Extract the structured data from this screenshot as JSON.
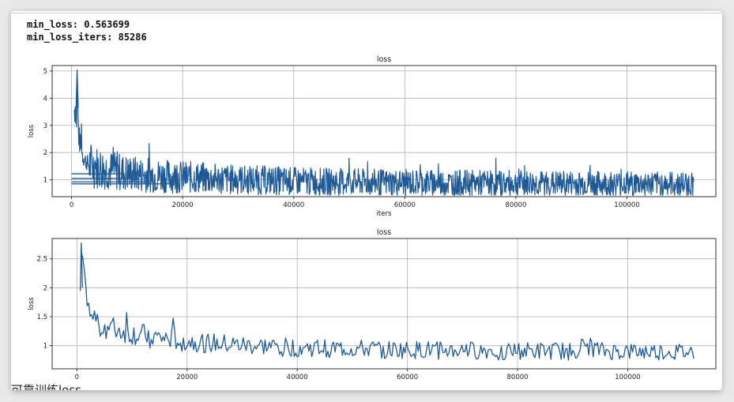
{
  "output": {
    "line1": "min_loss: 0.563699",
    "line2": "min_loss_iters: 85286"
  },
  "cutoff_text": "可靠训练loss",
  "colors": {
    "line": "#1f5a96",
    "grid": "#b0b0b0",
    "frame": "#333333"
  },
  "chart_data": [
    {
      "type": "line",
      "title": "loss",
      "xlabel": "iters",
      "ylabel": "loss",
      "xlim": [
        -3500,
        116000
      ],
      "ylim": [
        0.38,
        5.2
      ],
      "xticks": [
        0,
        20000,
        40000,
        60000,
        80000,
        100000
      ],
      "yticks": [
        1,
        2,
        3,
        4,
        5
      ],
      "grid": true,
      "series": [
        {
          "x": [
            500,
            700,
            900,
            1000,
            1100,
            1300,
            1600,
            2000,
            2500,
            3000,
            4000,
            5000,
            6000,
            7000,
            8000,
            9000,
            10000,
            12000,
            14000,
            16000,
            18000,
            20000,
            25000,
            30000,
            35000,
            40000,
            45000,
            50000,
            55000,
            60000,
            65000,
            70000,
            75000,
            80000,
            85286,
            90000,
            95000,
            100000,
            105000,
            110000,
            112000
          ],
          "y": [
            3.6,
            3.8,
            3.2,
            5.05,
            3.5,
            2.6,
            2.2,
            1.9,
            1.7,
            1.6,
            1.5,
            1.45,
            1.4,
            1.35,
            1.3,
            1.28,
            1.25,
            1.2,
            1.18,
            1.15,
            1.12,
            1.1,
            1.05,
            1.0,
            0.98,
            0.95,
            0.93,
            0.92,
            0.9,
            0.9,
            0.89,
            0.88,
            0.88,
            0.87,
            0.86,
            0.86,
            0.85,
            0.85,
            0.84,
            0.84,
            0.84
          ]
        }
      ]
    },
    {
      "type": "line",
      "title": "loss",
      "xlabel": "",
      "ylabel": "loss",
      "xlim": [
        -4500,
        116000
      ],
      "ylim": [
        0.6,
        2.85
      ],
      "xticks": [
        0,
        20000,
        40000,
        60000,
        80000,
        100000
      ],
      "yticks": [
        1.0,
        1.5,
        2.0,
        2.5
      ],
      "grid": true,
      "series": [
        {
          "x": [
            800,
            1200,
            1600,
            2000,
            2500,
            3000,
            4000,
            5000,
            6000,
            8000,
            10000,
            12000,
            14000,
            16000,
            18000,
            20000,
            25000,
            30000,
            35000,
            40000,
            45000,
            50000,
            55000,
            60000,
            65000,
            70000,
            75000,
            80000,
            85000,
            90000,
            92500,
            95000,
            100000,
            105000,
            110000,
            112000
          ],
          "y": [
            2.78,
            2.4,
            1.95,
            1.7,
            1.55,
            1.45,
            1.4,
            1.33,
            1.3,
            1.25,
            1.2,
            1.17,
            1.14,
            1.11,
            1.09,
            1.07,
            1.03,
            1.0,
            0.98,
            0.96,
            0.95,
            0.94,
            0.93,
            0.92,
            0.92,
            0.91,
            0.91,
            0.9,
            0.9,
            0.9,
            1.0,
            0.9,
            0.89,
            0.89,
            0.88,
            0.88
          ]
        }
      ]
    }
  ]
}
